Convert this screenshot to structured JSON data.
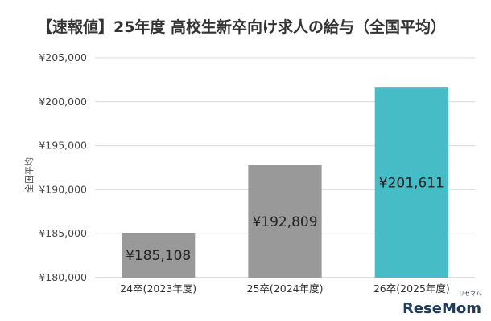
{
  "chart_data": {
    "type": "bar",
    "title": "【速報値】25年度 高校生新卒向け求人の給与（全国平均）",
    "ylabel": "全国平均",
    "xlabel": "",
    "categories": [
      "24卒(2023年度)",
      "25卒(2024年度)",
      "26卒(2025年度)"
    ],
    "values": [
      185108,
      192809,
      201611
    ],
    "value_labels": [
      "¥185,108",
      "¥192,809",
      "¥201,611"
    ],
    "ylim": [
      180000,
      205000
    ],
    "yticks": [
      180000,
      185000,
      190000,
      195000,
      200000,
      205000
    ],
    "ytick_labels": [
      "¥180,000",
      "¥185,000",
      "¥190,000",
      "¥195,000",
      "¥200,000",
      "¥205,000"
    ],
    "colors": [
      "#999999",
      "#999999",
      "#46bdc6"
    ],
    "grid": true,
    "legend": "none"
  },
  "watermark": {
    "text": "ReseMom",
    "subtext": "リセマム"
  }
}
